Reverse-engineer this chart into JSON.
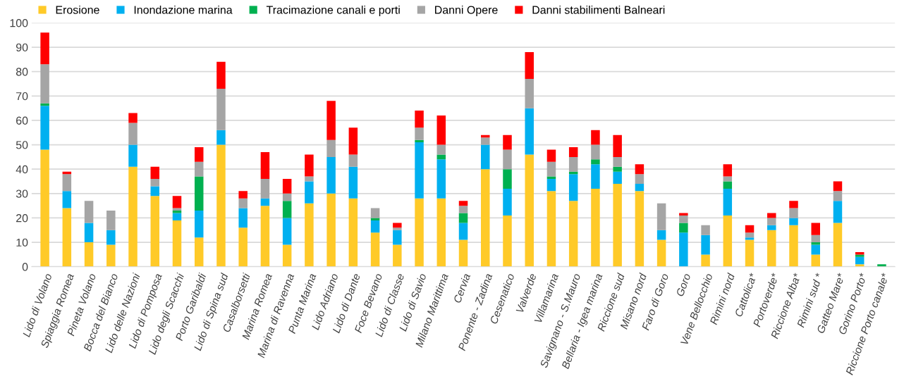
{
  "chart_data": {
    "type": "bar",
    "stacked": true,
    "legend": "top",
    "grid": "y",
    "categories": [
      "Lido di Volano",
      "Spiaggia Romea",
      "Pineta Volano",
      "Bocca del Bianco",
      "Lido delle Nazioni",
      "Lido di Pomposa",
      "Lido degli Scacchi",
      "Porto Garibaldi",
      "Lido di Spina sud",
      "Casalborsetti",
      "Marina Romea",
      "Marina di Ravenna",
      "Punta Marina",
      "Lido Adriano",
      "Lido di Dante",
      "Foce Bevano",
      "Lido di Classe",
      "Lido di Savio",
      "Milano Marittima",
      "Cervia",
      "Ponente - Zadina",
      "Cesenatico",
      "Valverde",
      "Villamarina",
      "Savignano - S.Mauro",
      "Bellaria - Igea marina",
      "Riccione sud",
      "Misano nord",
      "Faro di Goro",
      "Goro",
      "Vene Bellocchio",
      "Rimini nord",
      "Cattolica*",
      "Portoverde*",
      "Riccione Alba*",
      "Rimini sud *",
      "Gatteo Mare*",
      "Gorino Porto*",
      "Riccione Porto canale*"
    ],
    "series": [
      {
        "name": "Erosione",
        "color": "#ffca28",
        "values": [
          48,
          24,
          10,
          9,
          41,
          29,
          19,
          12,
          50,
          16,
          25,
          9,
          26,
          30,
          28,
          14,
          9,
          28,
          28,
          11,
          40,
          21,
          46,
          31,
          27,
          32,
          34,
          31,
          11,
          0,
          5,
          21,
          11,
          15,
          17,
          5,
          18,
          1,
          0
        ]
      },
      {
        "name": "Inondazione marina",
        "color": "#00b0f0",
        "values": [
          18,
          7,
          8,
          6,
          9,
          4,
          3,
          11,
          6,
          8,
          3,
          11,
          9,
          15,
          13,
          5,
          6,
          23,
          16,
          7,
          10,
          11,
          19,
          5,
          11,
          10,
          5,
          3,
          4,
          14,
          8,
          11,
          1,
          2,
          3,
          4,
          9,
          3,
          0
        ]
      },
      {
        "name": "Tracimazione canali e porti",
        "color": "#00b050",
        "values": [
          1,
          0,
          0,
          0,
          0,
          0,
          1,
          14,
          0,
          0,
          0,
          7,
          0,
          0,
          0,
          1,
          0,
          1,
          2,
          4,
          0,
          8,
          0,
          1,
          1,
          2,
          2,
          0,
          0,
          4,
          0,
          3,
          0,
          0,
          0,
          1,
          0,
          1,
          1
        ]
      },
      {
        "name": "Danni Opere",
        "color": "#a5a5a5",
        "values": [
          16,
          7,
          9,
          8,
          9,
          3,
          1,
          6,
          17,
          4,
          8,
          3,
          2,
          7,
          5,
          4,
          1,
          5,
          4,
          3,
          3,
          8,
          12,
          6,
          6,
          6,
          4,
          4,
          11,
          3,
          4,
          2,
          2,
          3,
          4,
          3,
          4,
          0,
          0
        ]
      },
      {
        "name": "Danni stabilimenti Balneari",
        "color": "#ff0000",
        "values": [
          13,
          1,
          0,
          0,
          4,
          5,
          5,
          6,
          11,
          3,
          11,
          6,
          9,
          16,
          11,
          0,
          2,
          7,
          12,
          2,
          1,
          6,
          11,
          5,
          4,
          6,
          9,
          4,
          0,
          1,
          0,
          5,
          3,
          2,
          3,
          5,
          4,
          1,
          0
        ]
      }
    ],
    "ylim": [
      0,
      100
    ],
    "yticks": [
      0,
      10,
      20,
      30,
      40,
      50,
      60,
      70,
      80,
      90,
      100
    ]
  }
}
